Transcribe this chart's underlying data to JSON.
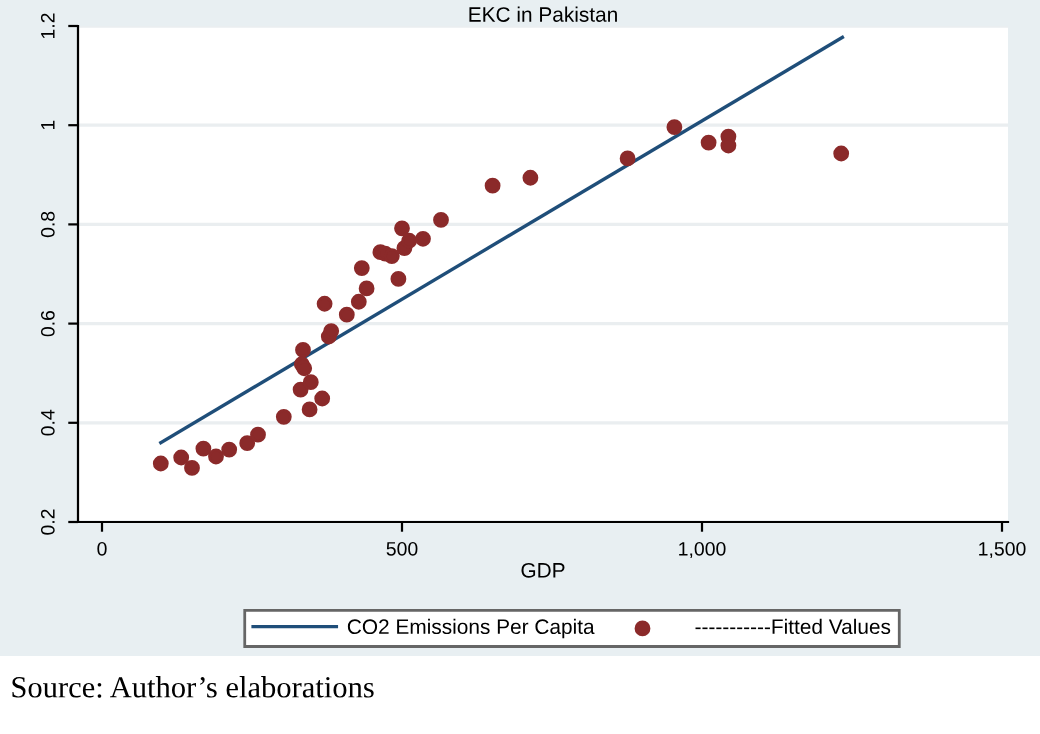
{
  "chart_data": {
    "type": "scatter",
    "title": "EKC in Pakistan",
    "xlabel": "GDP",
    "xlim": [
      -40,
      1510
    ],
    "ylim": [
      0.2,
      1.2
    ],
    "xticks": [
      0,
      500,
      {
        "value": 1000,
        "label": "1,000"
      },
      {
        "value": 1500,
        "label": "1,500"
      }
    ],
    "yticks": [
      0.2,
      0.4,
      0.6,
      0.8,
      1,
      1.2
    ],
    "grid": "y",
    "legend": "bottom",
    "marker": "circle",
    "series": [
      {
        "name": "CO2 Emissions Per Capita",
        "type": "line",
        "color": "#1f4e79",
        "x": [
          98,
          1234
        ],
        "values": [
          0.36,
          1.177
        ],
        "marker": "none"
      },
      {
        "name": "-----------Fitted Values",
        "color": "#8b2a2a",
        "x": [
          98,
          132,
          150,
          169,
          190,
          212,
          242,
          260,
          303,
          331,
          335,
          333,
          337,
          348,
          346,
          367,
          371,
          378,
          382,
          408,
          428,
          441,
          433,
          464,
          472,
          483,
          494,
          500,
          504,
          512,
          535,
          565,
          651,
          714,
          876,
          954,
          1011,
          1044,
          1044,
          1232
        ],
        "values": [
          0.318,
          0.33,
          0.309,
          0.348,
          0.332,
          0.346,
          0.359,
          0.376,
          0.412,
          0.467,
          0.547,
          0.518,
          0.51,
          0.482,
          0.427,
          0.449,
          0.64,
          0.574,
          0.585,
          0.618,
          0.644,
          0.671,
          0.712,
          0.744,
          0.741,
          0.736,
          0.69,
          0.792,
          0.752,
          0.767,
          0.771,
          0.809,
          0.878,
          0.894,
          0.933,
          0.996,
          0.965,
          0.977,
          0.959,
          0.943
        ]
      }
    ],
    "annotations": [
      "Source: Author’s elaborations"
    ]
  }
}
